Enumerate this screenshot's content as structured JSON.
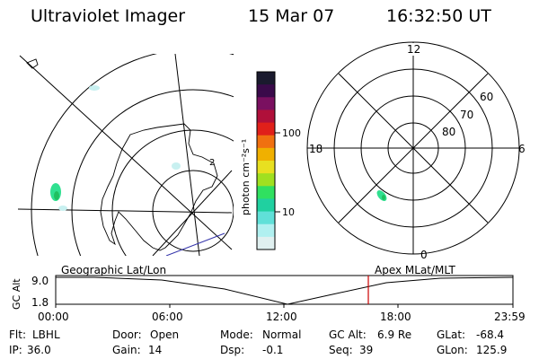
{
  "header": {
    "instrument": "Ultraviolet Imager",
    "date": "15 Mar 07",
    "time": "16:32:50 UT"
  },
  "colorbar": {
    "unit_label": "photon cm⁻²s⁻¹",
    "ticks": [
      "100",
      "10"
    ],
    "colors": [
      "#1a1a2e",
      "#3a0a4a",
      "#7a1060",
      "#b0103a",
      "#e0201a",
      "#f07010",
      "#f0b000",
      "#e8e020",
      "#a0e020",
      "#30e060",
      "#20d0a0",
      "#60e0d8",
      "#b0f0f0",
      "#e0f0f0"
    ]
  },
  "left_map": {
    "label": "Geographic Lat/Lon",
    "feature_label": "2"
  },
  "right_map": {
    "label": "Apex MLat/MLT",
    "mlt_labels": [
      "12",
      "18",
      "6",
      "0"
    ],
    "lat_labels": [
      "60",
      "70",
      "80"
    ]
  },
  "timeline": {
    "axis_label": "GC Alt",
    "y_ticks": [
      "9.0",
      "1.8"
    ],
    "x_ticks": [
      "00:00",
      "06:00",
      "12:00",
      "18:00",
      "23:59"
    ],
    "marker_color": "#cc0000"
  },
  "footer": {
    "row1": [
      {
        "key": "Flt:",
        "value": "LBHL"
      },
      {
        "key": "Door:",
        "value": "Open"
      },
      {
        "key": "Mode:",
        "value": "Normal"
      },
      {
        "key": "GC Alt:",
        "value": "6.9 Re"
      },
      {
        "key": "GLat:",
        "value": "-68.4"
      }
    ],
    "row2": [
      {
        "key": "IP:",
        "value": "36.0"
      },
      {
        "key": "Gain:",
        "value": "14"
      },
      {
        "key": "Dsp:",
        "value": "-0.1"
      },
      {
        "key": "Seq:",
        "value": "39"
      },
      {
        "key": "GLon:",
        "value": "125.9"
      }
    ]
  }
}
